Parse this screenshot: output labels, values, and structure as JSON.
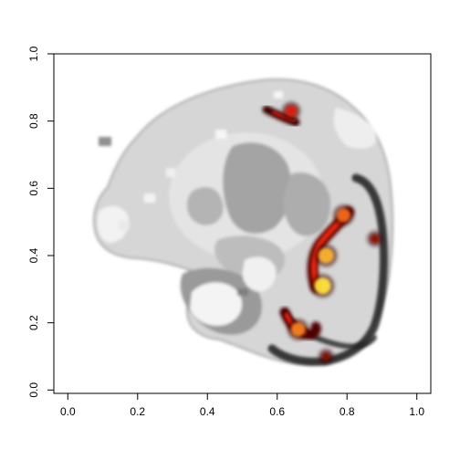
{
  "chart_data": {
    "type": "heatmap",
    "title": "",
    "xlabel": "",
    "ylabel": "",
    "xlim": [
      -0.04,
      1.04
    ],
    "ylim": [
      -0.01,
      1.0
    ],
    "x_ticks": [
      0.0,
      0.2,
      0.4,
      0.6,
      0.8,
      1.0
    ],
    "x_tick_labels": [
      "0.0",
      "0.2",
      "0.4",
      "0.6",
      "0.8",
      "1.0"
    ],
    "y_ticks": [
      0.0,
      0.2,
      0.4,
      0.6,
      0.8,
      1.0
    ],
    "y_tick_labels": [
      "0.0",
      "0.2",
      "0.4",
      "0.6",
      "0.8",
      "1.0"
    ],
    "grid": false,
    "legend": "none",
    "layers": [
      {
        "name": "anatomical background",
        "colormap": "grayscale",
        "visual": "grey cross-section slice"
      },
      {
        "name": "activation overlay",
        "colormap": "black-red-yellow-white",
        "visual": "hot-spots along the right contour"
      }
    ],
    "hotspots": [
      {
        "x": 0.64,
        "y": 0.83,
        "intensity": 0.55
      },
      {
        "x": 0.79,
        "y": 0.52,
        "intensity": 0.75
      },
      {
        "x": 0.74,
        "y": 0.4,
        "intensity": 0.9
      },
      {
        "x": 0.73,
        "y": 0.31,
        "intensity": 1.0
      },
      {
        "x": 0.66,
        "y": 0.18,
        "intensity": 0.8
      },
      {
        "x": 0.88,
        "y": 0.45,
        "intensity": 0.3
      },
      {
        "x": 0.74,
        "y": 0.1,
        "intensity": 0.25
      }
    ],
    "colors": {
      "background_tissue": "#cfcfcf",
      "dark_tissue": "#8a8a8a",
      "hot_low": "#3a0000",
      "hot_mid": "#e8200a",
      "hot_high": "#ffe23a",
      "axis": "#000000"
    }
  }
}
